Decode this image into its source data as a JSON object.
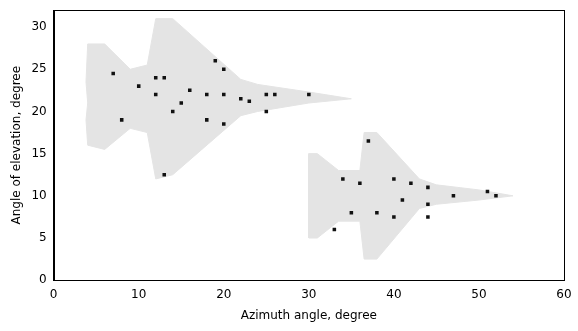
{
  "chart_data": {
    "type": "scatter",
    "xlabel": "Azimuth angle, degree",
    "ylabel": "Angle of elevation, degree",
    "xlim": [
      0,
      60
    ],
    "xticks": [
      0,
      10,
      20,
      30,
      40,
      50,
      60
    ],
    "ylim": [
      0,
      32
    ],
    "yticks": [
      0,
      5,
      10,
      15,
      20,
      25,
      30
    ],
    "grid": false,
    "series": [
      {
        "type": "polygon",
        "color": "#e4e4e4",
        "x": [
          35,
          30,
          24,
          22,
          14,
          12,
          11,
          9,
          6,
          4,
          3.8,
          4,
          3.8,
          4,
          6,
          9,
          11,
          12,
          14,
          22,
          24,
          30,
          35
        ],
        "values": [
          21.5,
          22.3,
          23.2,
          23.8,
          31,
          31,
          25.5,
          25,
          28,
          28,
          23.5,
          21,
          19,
          16,
          15.5,
          18,
          17.5,
          12,
          12.5,
          19.5,
          20,
          21,
          21.5
        ]
      },
      {
        "type": "polygon",
        "color": "#e4e4e4",
        "x": [
          54,
          50,
          45,
          43,
          38,
          36.5,
          36,
          33.5,
          31,
          30,
          30,
          30,
          30,
          31,
          33.5,
          36,
          36.5,
          38,
          43,
          45,
          50,
          54
        ],
        "values": [
          10,
          10.7,
          11.3,
          12,
          17.5,
          17.5,
          13,
          13,
          15,
          15,
          11,
          8,
          5,
          5,
          7,
          7,
          2.5,
          2.5,
          8.5,
          9,
          9.5,
          10
        ]
      },
      {
        "type": "scatter",
        "marker": "square",
        "color": "#111111",
        "x": [
          12,
          13,
          10,
          12,
          18,
          20,
          22,
          25,
          26,
          30,
          18,
          20,
          14,
          15,
          19,
          20,
          8,
          13,
          25,
          7,
          16,
          23
        ],
        "values": [
          24,
          24,
          23,
          22,
          22,
          22,
          21.5,
          22,
          22,
          22,
          19,
          18.5,
          20,
          21,
          26,
          25,
          19,
          12.5,
          20,
          24.5,
          22.5,
          21.2
        ]
      },
      {
        "type": "scatter",
        "marker": "square",
        "color": "#111111",
        "x": [
          34,
          36,
          40,
          42,
          44,
          51,
          52,
          40,
          44,
          38,
          35,
          33,
          44,
          47,
          37,
          41
        ],
        "values": [
          12,
          11.5,
          12,
          11.5,
          11,
          10.5,
          10,
          7.5,
          7.5,
          8,
          8,
          6,
          9,
          10,
          16.5,
          9.5
        ]
      }
    ]
  }
}
